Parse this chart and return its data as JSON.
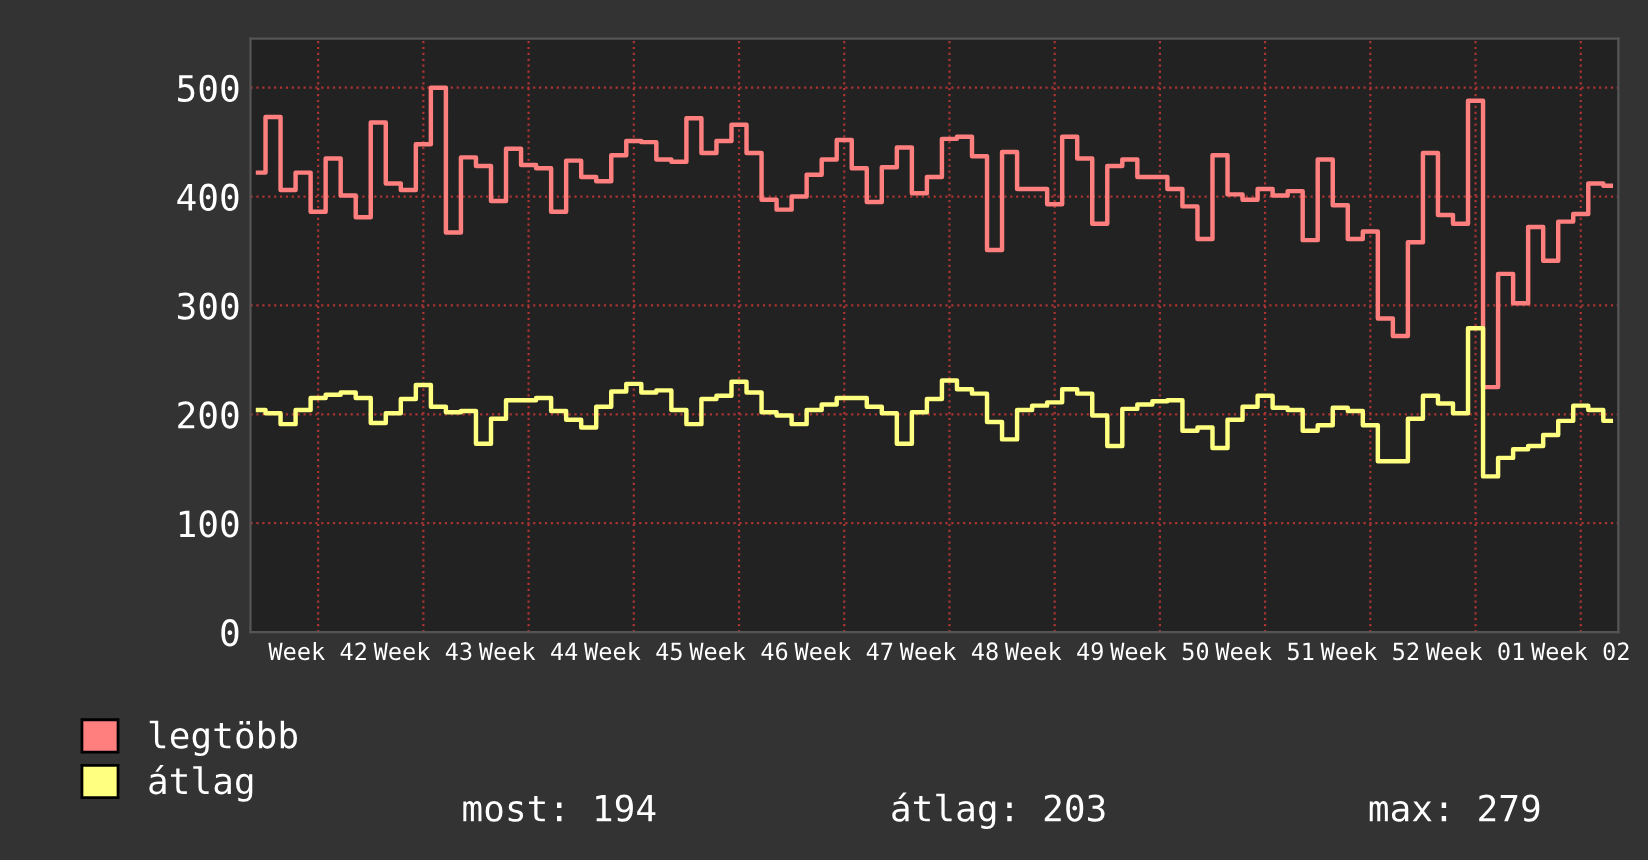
{
  "chart_data": {
    "type": "step",
    "categories": [
      null,
      null,
      null,
      null,
      "Week 42",
      null,
      null,
      null,
      null,
      null,
      null,
      "Week 43",
      null,
      null,
      null,
      null,
      null,
      null,
      "Week 44",
      null,
      null,
      null,
      null,
      null,
      null,
      "Week 45",
      null,
      null,
      null,
      null,
      null,
      null,
      "Week 46",
      null,
      null,
      null,
      null,
      null,
      null,
      "Week 47",
      null,
      null,
      null,
      null,
      null,
      null,
      "Week 48",
      null,
      null,
      null,
      null,
      null,
      null,
      "Week 49",
      null,
      null,
      null,
      null,
      null,
      null,
      "Week 50",
      null,
      null,
      null,
      null,
      null,
      null,
      "Week 51",
      null,
      null,
      null,
      null,
      null,
      null,
      "Week 52",
      null,
      null,
      null,
      null,
      null,
      null,
      "Week 01",
      null,
      null,
      null,
      null,
      null,
      null,
      "Week 02",
      null,
      null
    ],
    "series": [
      {
        "name": "legtöbb",
        "color": "#ff7f7f",
        "values": [
          422,
          473,
          406,
          422,
          386,
          435,
          401,
          381,
          468,
          412,
          406,
          448,
          500,
          367,
          436,
          428,
          396,
          444,
          429,
          426,
          386,
          433,
          418,
          414,
          438,
          451,
          450,
          434,
          432,
          472,
          440,
          451,
          466,
          440,
          397,
          388,
          400,
          420,
          434,
          452,
          426,
          395,
          427,
          445,
          403,
          418,
          453,
          455,
          437,
          351,
          441,
          407,
          407,
          393,
          455,
          435,
          375,
          428,
          434,
          418,
          418,
          407,
          391,
          361,
          438,
          402,
          397,
          407,
          401,
          405,
          360,
          434,
          392,
          361,
          368,
          288,
          272,
          358,
          440,
          383,
          375,
          488,
          225,
          329,
          302,
          372,
          341,
          377,
          384,
          412,
          410
        ]
      },
      {
        "name": "átlag",
        "color": "#ffff80",
        "values": [
          204,
          201,
          191,
          204,
          215,
          218,
          220,
          215,
          192,
          201,
          214,
          227,
          207,
          202,
          203,
          173,
          196,
          213,
          213,
          215,
          203,
          195,
          188,
          207,
          221,
          228,
          220,
          222,
          204,
          191,
          214,
          217,
          230,
          220,
          202,
          199,
          191,
          204,
          209,
          215,
          215,
          207,
          201,
          173,
          202,
          214,
          231,
          223,
          219,
          193,
          177,
          204,
          208,
          211,
          223,
          219,
          199,
          171,
          205,
          209,
          212,
          213,
          185,
          188,
          169,
          195,
          207,
          217,
          206,
          204,
          185,
          190,
          206,
          203,
          190,
          157,
          157,
          196,
          217,
          210,
          201,
          279,
          143,
          160,
          168,
          171,
          181,
          194,
          208,
          204,
          194
        ]
      }
    ],
    "ylim": [
      0,
      545
    ],
    "yticks": [
      0,
      100,
      200,
      300,
      400,
      500
    ],
    "grid": true,
    "legend": "bottom left",
    "line_style": "solid",
    "annotations": [
      "most: 194",
      "átlag: 203",
      "max: 279"
    ]
  }
}
